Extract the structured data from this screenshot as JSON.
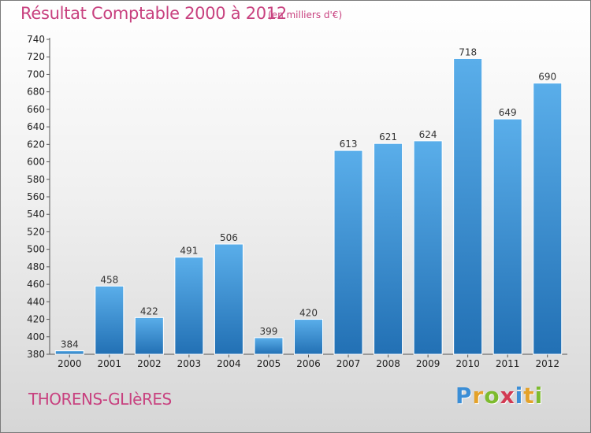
{
  "header": {
    "title": "Résultat Comptable 2000 à 2012",
    "subtitle": "(en milliers d'€)"
  },
  "footer": {
    "place_name": "THORENS-GLIèRES",
    "logo_letters": [
      "P",
      "r",
      "o",
      "x",
      "i",
      "t",
      "i"
    ],
    "logo_colors": [
      "#3b8ed6",
      "#e4a22a",
      "#7dbb2e",
      "#d23a52",
      "#3b8ed6",
      "#e4a22a",
      "#7dbb2e"
    ]
  },
  "chart_data": {
    "type": "bar",
    "title": "Résultat Comptable 2000 à 2012",
    "subtitle": "(en milliers d'€)",
    "categories": [
      "2000",
      "2001",
      "2002",
      "2003",
      "2004",
      "2005",
      "2006",
      "2007",
      "2008",
      "2009",
      "2010",
      "2011",
      "2012"
    ],
    "values": [
      384,
      458,
      422,
      491,
      506,
      399,
      420,
      613,
      621,
      624,
      718,
      649,
      690
    ],
    "ylim": [
      380,
      740
    ],
    "yticks": [
      380,
      400,
      420,
      440,
      460,
      480,
      500,
      520,
      540,
      560,
      580,
      600,
      620,
      640,
      660,
      680,
      700,
      720,
      740
    ],
    "grid": false,
    "legend": "none",
    "bar_color_top": "#5aaeea",
    "bar_color_bottom": "#2270b4"
  }
}
